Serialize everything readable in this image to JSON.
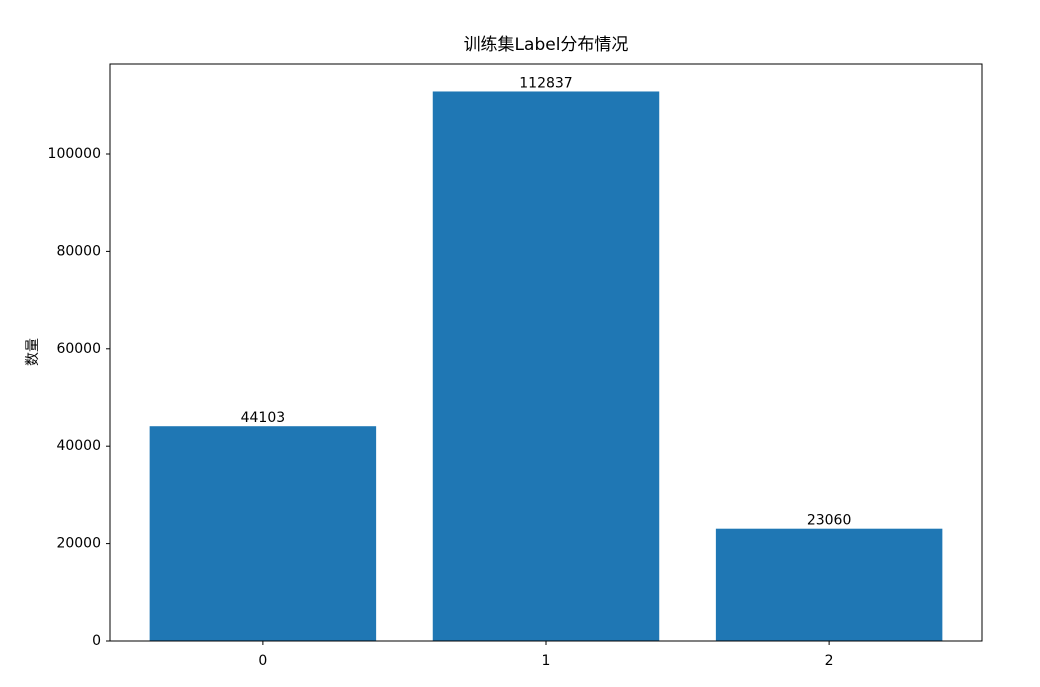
{
  "chart_data": {
    "type": "bar",
    "title": "训练集Label分布情况",
    "y_label": "数量",
    "categories": [
      "0",
      "1",
      "2"
    ],
    "values": [
      44103,
      112837,
      23060
    ],
    "color": "#1f77b4",
    "ylim": [
      0,
      118479
    ],
    "yticks": [
      0,
      20000,
      40000,
      60000,
      80000,
      100000
    ],
    "grid": false
  }
}
